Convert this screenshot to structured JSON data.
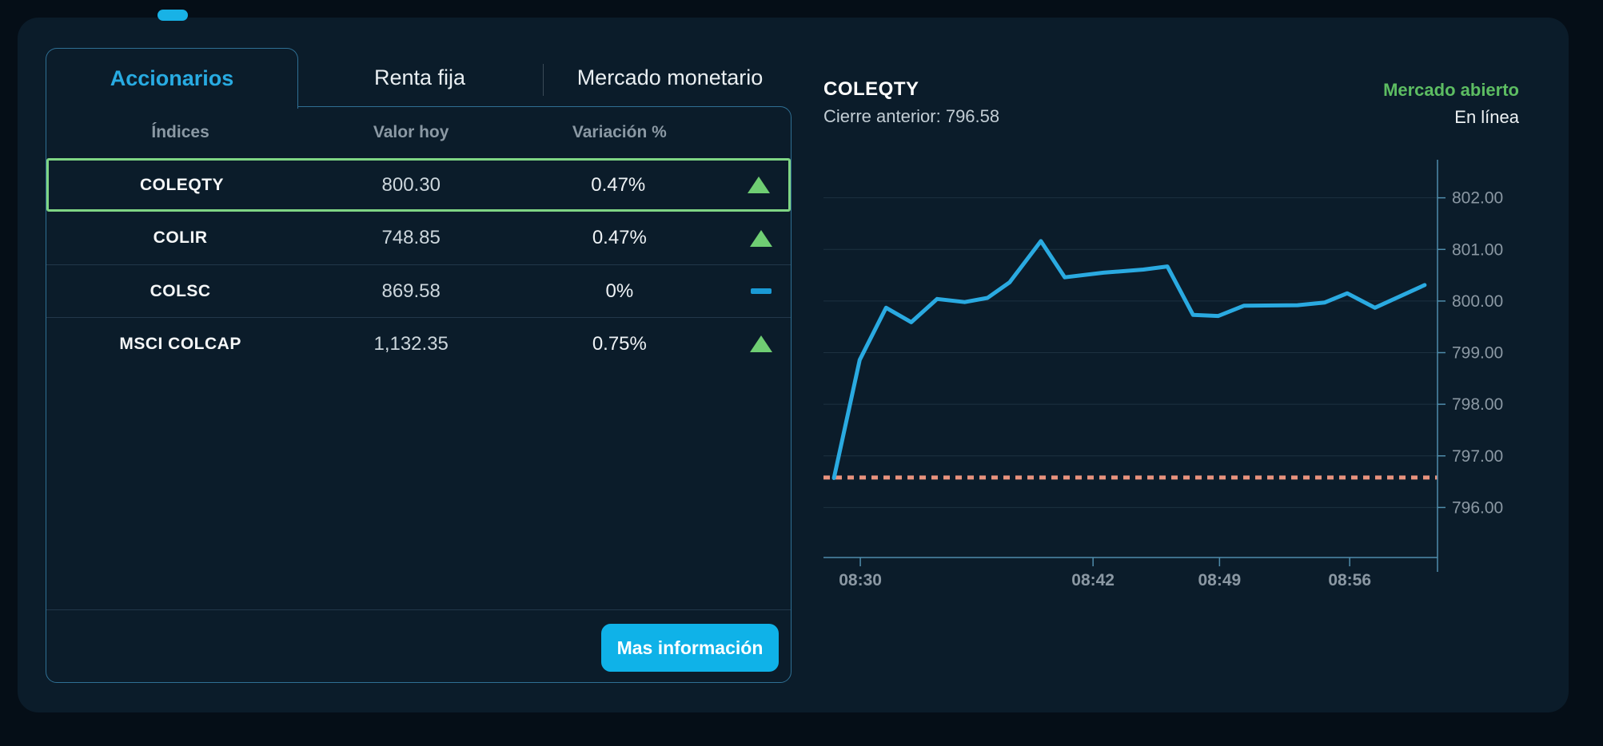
{
  "colors": {
    "page_background": "#050e17",
    "panel_background": "#0b1c2a",
    "accent_cyan": "#28abe2",
    "button_cyan": "#0fb2e8",
    "green_up": "#6fce73",
    "selected_border_green": "#7fd584",
    "flat_blue": "#1a9ad5",
    "line_blue": "#2aaae1",
    "previous_close_salmon": "#e8937e"
  },
  "tabs": [
    {
      "label": "Accionarios",
      "active": true
    },
    {
      "label": "Renta fija",
      "active": false
    },
    {
      "label": "Mercado monetario",
      "active": false
    }
  ],
  "table": {
    "headers": [
      "Índices",
      "Valor hoy",
      "Variación %"
    ],
    "rows": [
      {
        "name": "COLEQTY",
        "value": "800.30",
        "variation": "0.47%",
        "direction": "up",
        "selected": true
      },
      {
        "name": "COLIR",
        "value": "748.85",
        "variation": "0.47%",
        "direction": "up",
        "selected": false
      },
      {
        "name": "COLSC",
        "value": "869.58",
        "variation": "0%",
        "direction": "flat",
        "selected": false
      },
      {
        "name": "MSCI COLCAP",
        "value": "1,132.35",
        "variation": "0.75%",
        "direction": "up",
        "selected": false
      }
    ]
  },
  "actions": {
    "more_info_label": "Mas información"
  },
  "quote": {
    "symbol": "COLEQTY",
    "previous_close_text": "Cierre anterior: 796.58",
    "market_status": "Mercado abierto",
    "connection_status": "En línea"
  },
  "chart_data": {
    "type": "line",
    "title": "COLEQTY intraday price",
    "xlabel": "",
    "ylabel": "",
    "ylim": [
      795,
      802.66
    ],
    "grid": "horizontal",
    "legend": "none",
    "previous_close": 796.58,
    "y_ticks": [
      {
        "value": 802,
        "label": "802.00"
      },
      {
        "value": 801,
        "label": "801.00"
      },
      {
        "value": 800,
        "label": "800.00"
      },
      {
        "value": 799,
        "label": "799.00"
      },
      {
        "value": 798,
        "label": "798.00"
      },
      {
        "value": 797,
        "label": "797.00"
      },
      {
        "value": 796,
        "label": "796.00"
      }
    ],
    "x_ticks": [
      {
        "pos": 0.06,
        "label": "08:30"
      },
      {
        "pos": 0.439,
        "label": "08:42"
      },
      {
        "pos": 0.645,
        "label": "08:49"
      },
      {
        "pos": 0.857,
        "label": "08:56"
      }
    ],
    "series": [
      {
        "name": "COLEQTY",
        "points": [
          [
            0.017,
            796.57
          ],
          [
            0.059,
            798.86
          ],
          [
            0.102,
            799.87
          ],
          [
            0.143,
            799.59
          ],
          [
            0.185,
            800.04
          ],
          [
            0.23,
            799.98
          ],
          [
            0.267,
            800.06
          ],
          [
            0.303,
            800.36
          ],
          [
            0.354,
            801.16
          ],
          [
            0.393,
            800.46
          ],
          [
            0.456,
            800.55
          ],
          [
            0.521,
            800.61
          ],
          [
            0.56,
            800.67
          ],
          [
            0.602,
            799.73
          ],
          [
            0.643,
            799.71
          ],
          [
            0.685,
            799.91
          ],
          [
            0.772,
            799.92
          ],
          [
            0.816,
            799.97
          ],
          [
            0.853,
            800.15
          ],
          [
            0.898,
            799.87
          ],
          [
            0.979,
            800.31
          ]
        ]
      }
    ]
  }
}
